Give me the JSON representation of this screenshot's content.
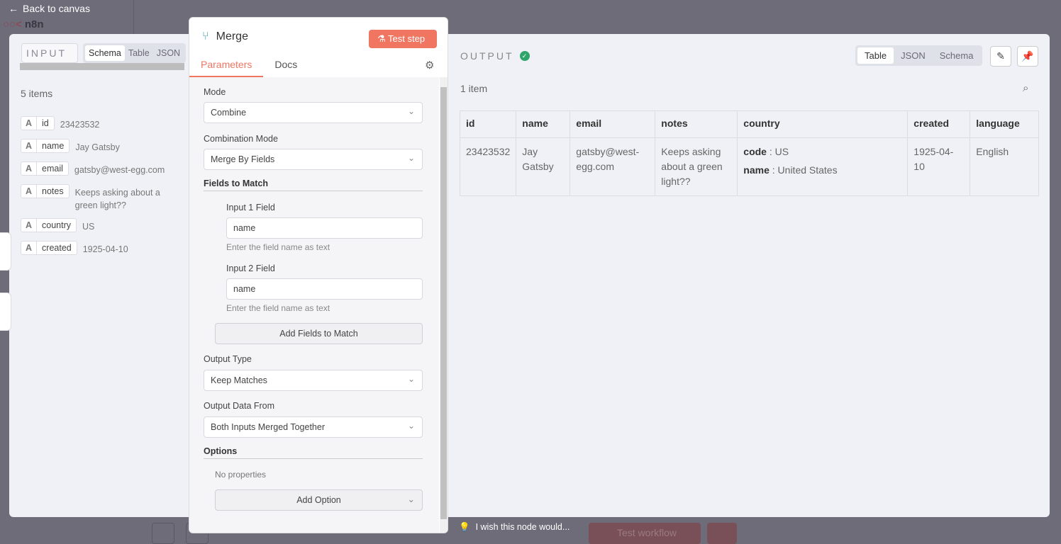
{
  "topbar": {
    "back_label": "Back to canvas",
    "logo": "n8n"
  },
  "bottom": {
    "test_workflow": "Test workflow",
    "feedback": "I wish this node would..."
  },
  "input": {
    "selector": "INPUT",
    "tabs": [
      "Schema",
      "Table",
      "JSON"
    ],
    "active_tab": "Schema",
    "count": "5 items",
    "fields": [
      {
        "type": "A",
        "name": "id",
        "value": "23423532"
      },
      {
        "type": "A",
        "name": "name",
        "value": "Jay Gatsby"
      },
      {
        "type": "A",
        "name": "email",
        "value": "gatsby@west-egg.com"
      },
      {
        "type": "A",
        "name": "notes",
        "value": "Keeps asking about a green light??"
      },
      {
        "type": "A",
        "name": "country",
        "value": "US"
      },
      {
        "type": "A",
        "name": "created",
        "value": "1925-04-10"
      }
    ]
  },
  "node": {
    "title": "Merge",
    "test_step": "Test step",
    "tabs": [
      "Parameters",
      "Docs"
    ],
    "mode_label": "Mode",
    "mode_value": "Combine",
    "combination_label": "Combination Mode",
    "combination_value": "Merge By Fields",
    "fields_to_match": "Fields to Match",
    "input1_label": "Input 1 Field",
    "input1_value": "name",
    "input1_hint": "Enter the field name as text",
    "input2_label": "Input 2 Field",
    "input2_value": "name",
    "input2_hint": "Enter the field name as text",
    "add_fields": "Add Fields to Match",
    "output_type_label": "Output Type",
    "output_type_value": "Keep Matches",
    "output_from_label": "Output Data From",
    "output_from_value": "Both Inputs Merged Together",
    "options": "Options",
    "no_properties": "No properties",
    "add_option": "Add Option"
  },
  "output": {
    "title": "OUTPUT",
    "status": "success",
    "tabs": [
      "Table",
      "JSON",
      "Schema"
    ],
    "active_tab": "Table",
    "count": "1 item",
    "columns": [
      "id",
      "name",
      "email",
      "notes",
      "country",
      "created",
      "language"
    ],
    "row": {
      "id": "23423532",
      "name": "Jay Gatsby",
      "email": "gatsby@west-egg.com",
      "notes": "Keeps asking about a green light??",
      "country_code_key": "code",
      "country_code": "US",
      "country_name_key": "name",
      "country_name": "United States",
      "created": "1925-04-10",
      "language": "English"
    }
  },
  "colors": {
    "accent": "#f07662",
    "success": "#2fa56a"
  }
}
